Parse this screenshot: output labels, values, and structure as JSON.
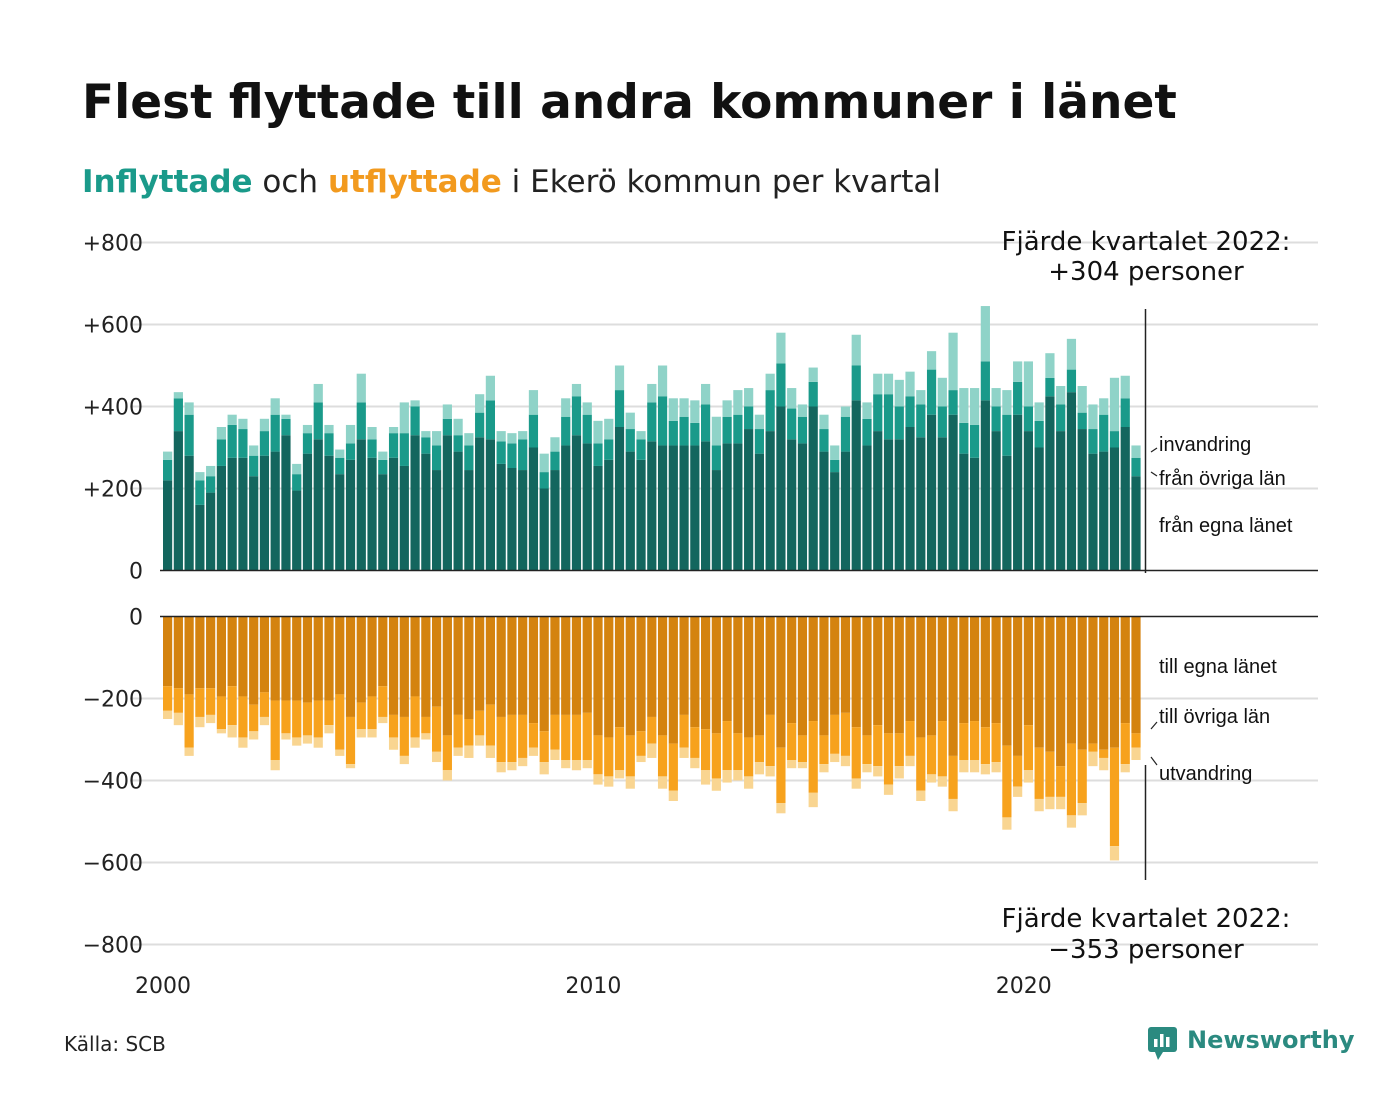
{
  "title": "Flest flyttade till andra kommuner i länet",
  "subtitle": {
    "in_word": "Inflyttade",
    "mid": " och ",
    "out_word": "utflyttade",
    "rest": " i Ekerö kommun per kvartal"
  },
  "source": "Källa: SCB",
  "brand": "Newsworthy",
  "colors": {
    "in_own": "#13665e",
    "in_other": "#1a9a8a",
    "in_immig": "#8fd3c8",
    "out_own": "#d4830f",
    "out_other": "#f7a21d",
    "out_emig": "#f9d591",
    "subtitle_in": "#1a9a8a",
    "subtitle_out": "#f29a1e",
    "brand": "#2b8a80"
  },
  "annotations": {
    "top_line1": "Fjärde kvartalet 2022:",
    "top_line2": "+304 personer",
    "bottom_line1": "Fjärde kvartalet 2022:",
    "bottom_line2": "−353 personer"
  },
  "chart_data": {
    "type": "bar",
    "stacked": true,
    "diverging": true,
    "x_start": 2000,
    "x_ticks": [
      "2000",
      "2010",
      "2020"
    ],
    "y_ticks_top": [
      "+800",
      "+600",
      "+400",
      "+200",
      "0"
    ],
    "y_ticks_bottom": [
      "0",
      "−200",
      "−400",
      "−600",
      "−800"
    ],
    "y_range_top": [
      0,
      800
    ],
    "y_range_bottom": [
      -800,
      0
    ],
    "grid": true,
    "inflow_labels": [
      "invandring",
      "från övriga län",
      "från egna länet"
    ],
    "outflow_labels": [
      "till egna länet",
      "till övriga län",
      "utvandring"
    ],
    "inflow": {
      "own": [
        220,
        340,
        280,
        160,
        190,
        255,
        275,
        275,
        230,
        280,
        290,
        330,
        195,
        285,
        320,
        280,
        235,
        270,
        320,
        275,
        235,
        275,
        255,
        330,
        285,
        245,
        330,
        290,
        245,
        325,
        320,
        260,
        250,
        245,
        300,
        200,
        245,
        305,
        330,
        310,
        255,
        270,
        350,
        290,
        270,
        315,
        305,
        305,
        305,
        305,
        315,
        245,
        310,
        310,
        345,
        285,
        340,
        400,
        320,
        310,
        400,
        290,
        240,
        290,
        415,
        305,
        340,
        320,
        320,
        350,
        325,
        380,
        325,
        380,
        285,
        275,
        415,
        340,
        280,
        380,
        340,
        300,
        425,
        340,
        435,
        345,
        285,
        290,
        300,
        350,
        230
      ],
      "other": [
        50,
        80,
        100,
        60,
        40,
        65,
        80,
        70,
        50,
        60,
        90,
        40,
        40,
        50,
        90,
        55,
        40,
        40,
        90,
        45,
        35,
        60,
        80,
        70,
        40,
        60,
        40,
        40,
        60,
        60,
        95,
        55,
        60,
        75,
        80,
        40,
        45,
        70,
        95,
        70,
        55,
        50,
        90,
        55,
        50,
        95,
        120,
        60,
        70,
        55,
        90,
        60,
        65,
        70,
        55,
        60,
        100,
        105,
        75,
        65,
        60,
        55,
        30,
        85,
        85,
        65,
        90,
        110,
        80,
        75,
        80,
        110,
        75,
        60,
        75,
        80,
        95,
        60,
        100,
        80,
        60,
        65,
        45,
        65,
        55,
        40,
        60,
        90,
        40,
        70,
        45
      ],
      "immig": [
        20,
        15,
        30,
        20,
        25,
        30,
        25,
        25,
        25,
        30,
        40,
        10,
        25,
        20,
        45,
        20,
        20,
        45,
        70,
        30,
        20,
        15,
        75,
        15,
        15,
        35,
        35,
        40,
        30,
        45,
        60,
        25,
        25,
        20,
        60,
        45,
        35,
        45,
        30,
        30,
        55,
        50,
        60,
        40,
        20,
        45,
        75,
        55,
        45,
        55,
        50,
        70,
        40,
        60,
        45,
        35,
        40,
        75,
        50,
        30,
        35,
        35,
        35,
        25,
        75,
        40,
        50,
        50,
        65,
        60,
        35,
        45,
        70,
        140,
        85,
        90,
        135,
        45,
        60,
        50,
        110,
        45,
        60,
        45,
        75,
        65,
        60,
        40,
        130,
        55,
        30
      ]
    },
    "outflow": {
      "own": [
        170,
        175,
        190,
        175,
        175,
        195,
        170,
        195,
        215,
        185,
        205,
        205,
        205,
        210,
        205,
        205,
        190,
        245,
        210,
        195,
        170,
        240,
        245,
        195,
        245,
        220,
        290,
        240,
        250,
        230,
        215,
        245,
        240,
        240,
        260,
        280,
        240,
        240,
        240,
        235,
        290,
        295,
        270,
        290,
        280,
        245,
        290,
        310,
        240,
        270,
        275,
        285,
        255,
        285,
        295,
        290,
        240,
        320,
        260,
        290,
        255,
        290,
        240,
        235,
        270,
        290,
        265,
        285,
        285,
        255,
        295,
        290,
        255,
        340,
        260,
        255,
        270,
        260,
        315,
        340,
        265,
        320,
        330,
        365,
        310,
        325,
        310,
        325,
        320,
        260,
        285
      ],
      "other": [
        60,
        60,
        130,
        70,
        65,
        80,
        95,
        100,
        65,
        60,
        145,
        80,
        90,
        80,
        90,
        60,
        135,
        115,
        65,
        80,
        75,
        55,
        95,
        100,
        40,
        110,
        85,
        80,
        65,
        60,
        100,
        110,
        115,
        105,
        60,
        75,
        85,
        110,
        110,
        115,
        95,
        95,
        105,
        100,
        60,
        65,
        100,
        115,
        80,
        75,
        100,
        110,
        120,
        90,
        95,
        65,
        125,
        135,
        90,
        65,
        175,
        70,
        95,
        105,
        125,
        70,
        100,
        125,
        80,
        85,
        130,
        95,
        135,
        105,
        90,
        95,
        90,
        95,
        175,
        75,
        110,
        125,
        110,
        75,
        175,
        130,
        20,
        20,
        240,
        100,
        35
      ],
      "emig": [
        20,
        30,
        20,
        25,
        20,
        10,
        30,
        25,
        20,
        20,
        25,
        15,
        20,
        20,
        25,
        20,
        15,
        10,
        20,
        20,
        15,
        30,
        20,
        25,
        15,
        25,
        25,
        20,
        30,
        25,
        30,
        25,
        20,
        20,
        20,
        30,
        25,
        20,
        25,
        20,
        25,
        25,
        20,
        30,
        15,
        35,
        30,
        25,
        25,
        25,
        35,
        30,
        30,
        25,
        30,
        30,
        25,
        25,
        20,
        15,
        35,
        20,
        20,
        25,
        25,
        20,
        25,
        25,
        30,
        25,
        25,
        20,
        25,
        30,
        30,
        30,
        25,
        25,
        30,
        25,
        30,
        30,
        30,
        30,
        30,
        30,
        35,
        30,
        35,
        20,
        30
      ]
    }
  }
}
